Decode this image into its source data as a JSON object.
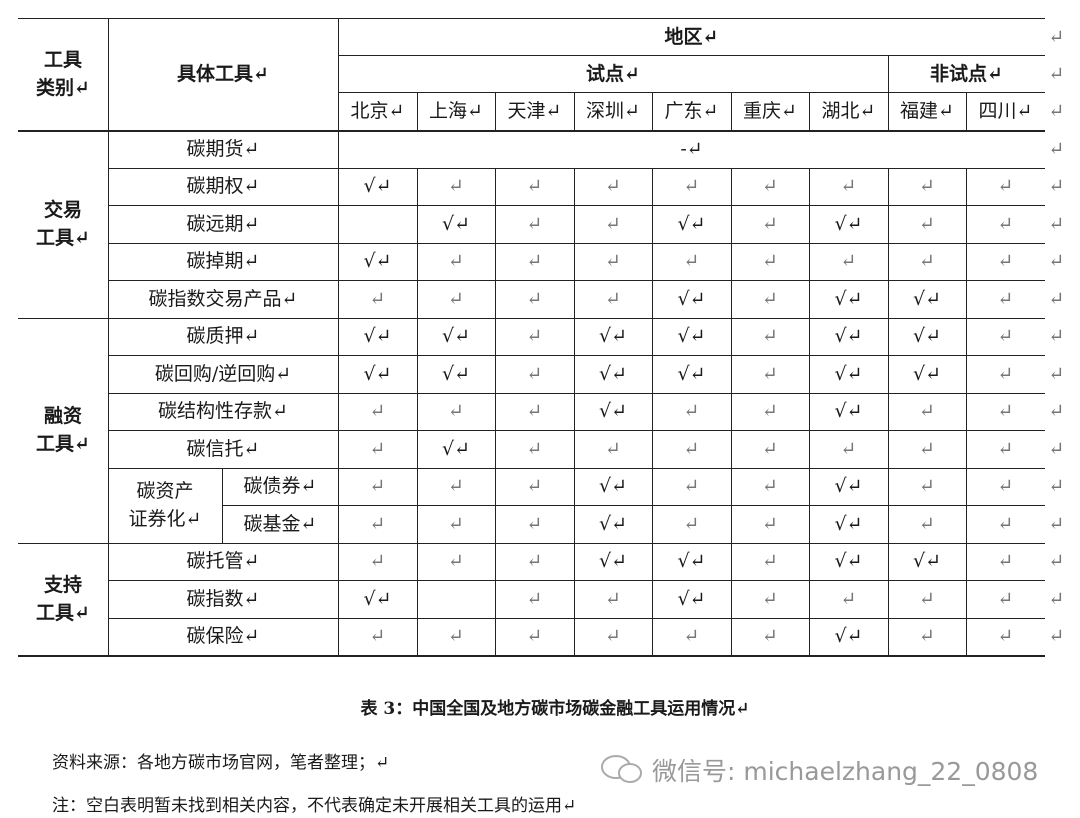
{
  "header": {
    "category_label": [
      "工具",
      "类别↵"
    ],
    "tool_label": "具体工具↵",
    "region_label": "地区↵",
    "groups": [
      {
        "label": "试点↵"
      },
      {
        "label": "非试点↵"
      }
    ],
    "regions": [
      "北京↵",
      "上海↵",
      "天津↵",
      "深圳↵",
      "广东↵",
      "重庆↵",
      "湖北↵",
      "福建↵",
      "四川↵"
    ],
    "row_end_marks": [
      "↵",
      "↵",
      "↵"
    ]
  },
  "groups": [
    {
      "label": [
        "交易",
        "工具↵"
      ],
      "rows": [
        {
          "tool": "碳期货↵",
          "merged": "-↵",
          "end": "↵"
        },
        {
          "tool": "碳期权↵",
          "cells": [
            "√↵",
            "↵",
            "↵",
            "↵",
            "↵",
            "↵",
            "↵",
            "↵",
            "↵"
          ],
          "end": "↵"
        },
        {
          "tool": "碳远期↵",
          "cells": [
            null,
            "√↵",
            "↵",
            "↵",
            "√↵",
            "↵",
            "√↵",
            "↵",
            "↵"
          ],
          "end": "↵"
        },
        {
          "tool": "碳掉期↵",
          "cells": [
            "√↵",
            "↵",
            "↵",
            "↵",
            "↵",
            "↵",
            "↵",
            "↵",
            "↵"
          ],
          "end": "↵"
        },
        {
          "tool": "碳指数交易产品↵",
          "cells": [
            "↵",
            "↵",
            "↵",
            "↵",
            "√↵",
            "↵",
            "√↵",
            "√↵",
            "↵"
          ],
          "end": "↵"
        }
      ]
    },
    {
      "label": [
        "融资",
        "工具↵"
      ],
      "rows": [
        {
          "tool": "碳质押↵",
          "cells": [
            "√↵",
            "√↵",
            "↵",
            "√↵",
            "√↵",
            "↵",
            "√↵",
            "√↵",
            "↵"
          ],
          "end": "↵"
        },
        {
          "tool": "碳回购/逆回购↵",
          "cells": [
            "√↵",
            "√↵",
            "↵",
            "√↵",
            "√↵",
            "↵",
            "√↵",
            "√↵",
            "↵"
          ],
          "end": "↵"
        },
        {
          "tool": "碳结构性存款↵",
          "cells": [
            "↵",
            "↵",
            "↵",
            "√↵",
            "↵",
            "↵",
            "√↵",
            "↵",
            "↵"
          ],
          "end": "↵"
        },
        {
          "tool": "碳信托↵",
          "cells": [
            "↵",
            "√↵",
            "↵",
            "↵",
            "↵",
            "↵",
            "↵",
            "↵",
            "↵"
          ],
          "end": "↵"
        },
        {
          "label": [
            "碳资产",
            "证券化↵"
          ],
          "rows": [
            {
              "tool": "碳债券↵",
              "cells": [
                "↵",
                "↵",
                "↵",
                "√↵",
                "↵",
                "↵",
                "√↵",
                "↵",
                "↵"
              ],
              "end": "↵"
            },
            {
              "tool": "碳基金↵",
              "cells": [
                "↵",
                "↵",
                "↵",
                "√↵",
                "↵",
                "↵",
                "√↵",
                "↵",
                "↵"
              ],
              "end": "↵"
            }
          ]
        }
      ]
    },
    {
      "label": [
        "支持",
        "工具↵"
      ],
      "rows": [
        {
          "tool": "碳托管↵",
          "cells": [
            "↵",
            "↵",
            "↵",
            "√↵",
            "√↵",
            "↵",
            "√↵",
            "√↵",
            "↵"
          ],
          "end": "↵"
        },
        {
          "tool": "碳指数↵",
          "cells": [
            "√↵",
            null,
            "↵",
            "↵",
            "√↵",
            "↵",
            "↵",
            "↵",
            "↵"
          ],
          "end": "↵"
        },
        {
          "tool": "碳保险↵",
          "cells": [
            "↵",
            "↵",
            "↵",
            "↵",
            "↵",
            "↵",
            "√↵",
            "↵",
            "↵"
          ],
          "end": "↵"
        }
      ]
    }
  ],
  "caption": "表 3：中国全国及地方碳市场碳金融工具运用情况↵",
  "source": "资料来源：各地方碳市场官网，笔者整理；↵",
  "note": "注：空白表明暂未找到相关内容，不代表确定未开展相关工具的运用↵",
  "watermark": "微信号: michaelzhang_22_0808"
}
